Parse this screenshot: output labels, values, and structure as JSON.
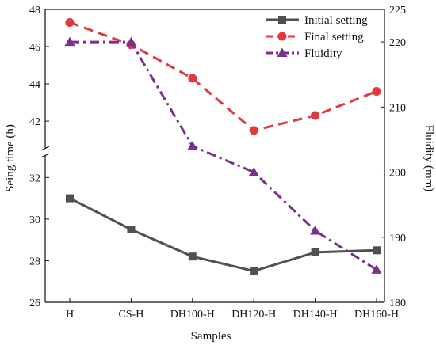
{
  "chart_data": {
    "type": "line",
    "title": "",
    "xlabel": "Samples",
    "ylabel_left": "Seing time (h)",
    "ylabel_right": "Fluidity (mm)",
    "categories": [
      "H",
      "CS-H",
      "DH100-H",
      "DH120-H",
      "DH140-H",
      "DH160-H"
    ],
    "left_axis_segments": [
      {
        "range": [
          26,
          33
        ],
        "ticks": [
          "26",
          "28",
          "30",
          "32"
        ]
      },
      {
        "range": [
          40.6,
          48
        ],
        "ticks": [
          "42",
          "44",
          "46",
          "48"
        ]
      }
    ],
    "right_axis": {
      "range": [
        180,
        225
      ],
      "ticks": [
        "180",
        "190",
        "200",
        "210",
        "220",
        "225"
      ]
    },
    "axis_break": true,
    "series": [
      {
        "name": "Initial setting",
        "axis": "left",
        "color": "#505050",
        "dash": "solid",
        "marker": "square",
        "values": [
          31.0,
          29.5,
          28.2,
          27.5,
          28.4,
          28.5
        ]
      },
      {
        "name": "Final setting",
        "axis": "left",
        "color": "#e0393e",
        "dash": "dash",
        "marker": "circle",
        "values": [
          47.3,
          46.1,
          44.3,
          41.5,
          42.3,
          43.6
        ]
      },
      {
        "name": "Fluidity",
        "axis": "right",
        "color": "#7b2e8e",
        "dash": "dashdot",
        "marker": "triangle",
        "values": [
          220,
          220,
          204,
          200,
          191,
          185
        ]
      }
    ],
    "legend_position": "top-right",
    "grid": false
  }
}
